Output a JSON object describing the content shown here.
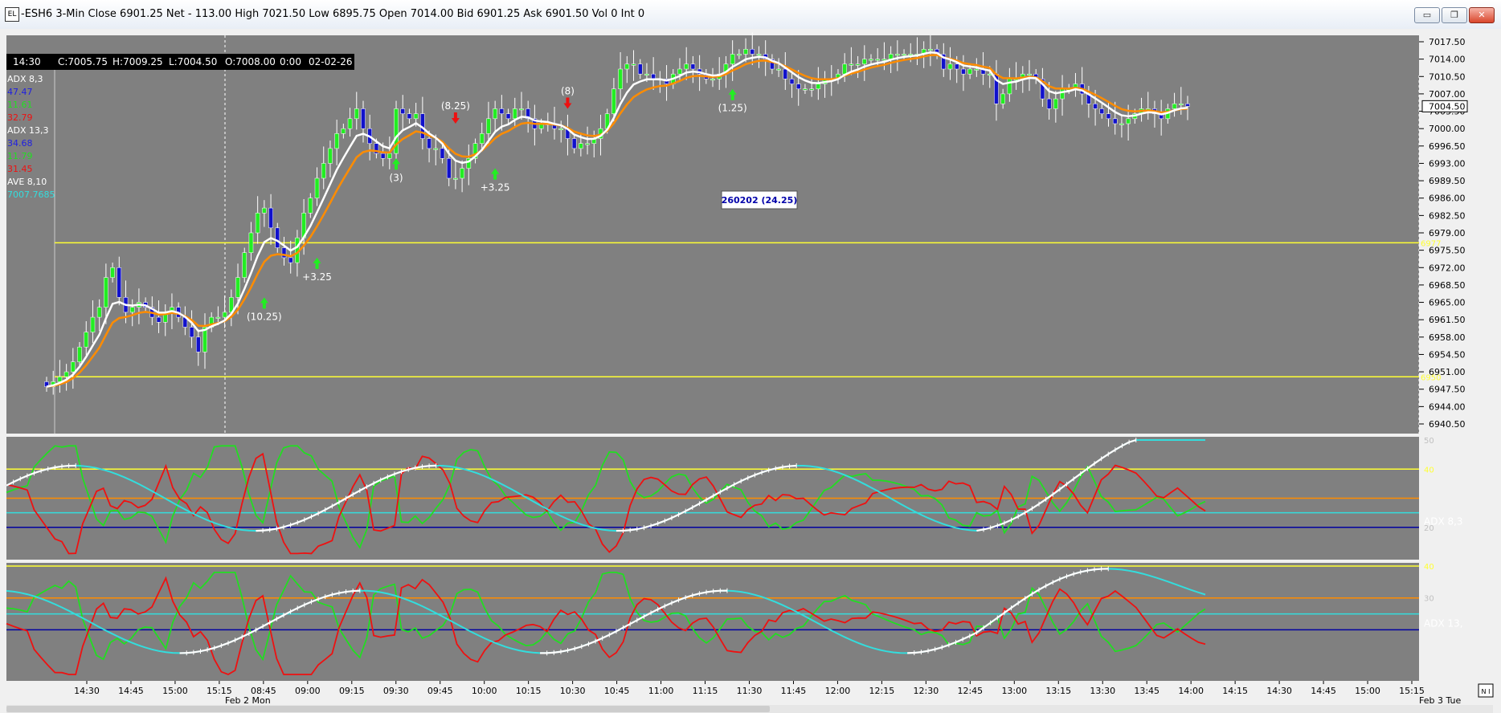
{
  "window": {
    "app_icon": "EL",
    "title": "-ESH6 3-Min Close 6901.25 Net - 113.00 High 7021.50 Low 6895.75 Open 7014.00 Bid 6901.25 Ask 6901.50 Vol 0 Int 0",
    "minimize_icon": "minimize-icon",
    "maximize_icon": "maximize-icon",
    "close_icon": "close-icon",
    "min_glyph": "▭",
    "max_glyph": "❐",
    "close_glyph": "✕"
  },
  "data_box": {
    "time": "14:30",
    "c": "C:7005.75",
    "h": "H:7009.25",
    "l": "L:7004.50",
    "o": "O:7008.00",
    "vol": "0:00",
    "date": "02-02-26"
  },
  "legend": [
    {
      "text": "ADX  8,3",
      "color": "#ffffff"
    },
    {
      "text": "47.47",
      "color": "#2020e0"
    },
    {
      "text": "11.61",
      "color": "#22dd22"
    },
    {
      "text": "32.79",
      "color": "#ee1111"
    },
    {
      "text": "ADX  13,3",
      "color": "#ffffff"
    },
    {
      "text": "34.68",
      "color": "#2020e0"
    },
    {
      "text": "11.79",
      "color": "#22dd22"
    },
    {
      "text": "31.45",
      "color": "#ee1111"
    },
    {
      "text": "AVE  8,10",
      "color": "#ffffff"
    },
    {
      "text": "7007.7685",
      "color": "#33dddd"
    }
  ],
  "colors": {
    "background": "#808080",
    "up_bar": "#22ee22",
    "down_bar": "#1111cc",
    "ma_slow": "#ff8c00",
    "ma_fast": "#ffffff",
    "level_line": "#ffff33",
    "adx_plus": "#22dd22",
    "adx_minus": "#ee1111",
    "adx_line": "#33dddd",
    "adx_slope": "#ffffff",
    "ref_orange": "#ff8c00",
    "ref_cyan": "#33dddd",
    "ref_navy": "#0000a0"
  },
  "price_axis": {
    "ticks": [
      "7017.50",
      "7014.00",
      "7010.50",
      "7007.00",
      "7003.50",
      "7000.00",
      "6996.50",
      "6993.00",
      "6989.50",
      "6986.00",
      "6982.50",
      "6979.00",
      "6975.50",
      "6972.00",
      "6968.50",
      "6965.00",
      "6961.50",
      "6958.00",
      "6954.50",
      "6951.00",
      "6947.50",
      "6944.00",
      "6940.50"
    ],
    "current_price": "7004.50",
    "current_price_value": 7004.5,
    "range": [
      6940.5,
      7017.5
    ]
  },
  "levels": [
    {
      "value": 6977,
      "label": "6977"
    },
    {
      "value": 6950,
      "label": "6950"
    }
  ],
  "time_axis": {
    "labels": [
      "14:30",
      "14:45",
      "15:00",
      "15:15",
      "08:45",
      "09:00",
      "09:15",
      "09:30",
      "09:45",
      "10:00",
      "10:15",
      "10:30",
      "10:45",
      "11:00",
      "11:15",
      "11:30",
      "11:45",
      "12:00",
      "12:15",
      "12:30",
      "12:45",
      "13:00",
      "13:15",
      "13:30",
      "13:45",
      "14:00",
      "14:15",
      "14:30",
      "14:45",
      "15:00",
      "15:15"
    ],
    "session_label": "Feb 2 Mon",
    "right_label": "Feb 3 Tue",
    "corner_label": "N I"
  },
  "annotations": [
    {
      "text": "(10.25)",
      "arrow": "up",
      "bar": 33,
      "price": 6966
    },
    {
      "text": "+3.25",
      "arrow": "up",
      "bar": 41,
      "price": 6974
    },
    {
      "text": "(3)",
      "arrow": "up",
      "bar": 53,
      "price": 6994
    },
    {
      "text": "(8.25)",
      "arrow": "down",
      "bar": 62,
      "price": 7001
    },
    {
      "text": "+3.25",
      "arrow": "up",
      "bar": 68,
      "price": 6992
    },
    {
      "text": "(8)",
      "arrow": "down",
      "bar": 79,
      "price": 7004
    },
    {
      "text": "(1.25)",
      "arrow": "up",
      "bar": 104,
      "price": 7008
    }
  ],
  "profit_box": "260202  (24.25)",
  "adx_pane_1": {
    "label": "ADX  8,3",
    "range": [
      10,
      50
    ],
    "ticks": [
      {
        "value": 50,
        "label": "50"
      },
      {
        "value": 40,
        "label": "40"
      },
      {
        "value": 20,
        "label": "20"
      }
    ],
    "refs": [
      {
        "value": 40,
        "kind": "yellow"
      },
      {
        "value": 30,
        "kind": "orange"
      },
      {
        "value": 25,
        "kind": "cyan"
      },
      {
        "value": 20,
        "kind": "navy"
      }
    ]
  },
  "adx_pane_2": {
    "label": "ADX  13,",
    "range": [
      5,
      40
    ],
    "ticks": [
      {
        "value": 40,
        "label": "40"
      },
      {
        "value": 30,
        "label": "30"
      }
    ],
    "refs": [
      {
        "value": 40,
        "kind": "yellow"
      },
      {
        "value": 30,
        "kind": "orange"
      },
      {
        "value": 25,
        "kind": "cyan"
      },
      {
        "value": 20,
        "kind": "navy"
      }
    ]
  },
  "chart_data": {
    "type": "candlestick",
    "interval": "3-Min",
    "symbol": "ESH6",
    "closes": [
      6948,
      6949,
      6950,
      6951,
      6953,
      6956,
      6959,
      6962,
      6964,
      6970,
      6972,
      6966,
      6963,
      6964,
      6965,
      6964,
      6962,
      6961,
      6963,
      6964,
      6962,
      6960,
      6958,
      6955,
      6960,
      6962,
      6962,
      6963,
      6966,
      6970,
      6975,
      6979,
      6983,
      6984,
      6980,
      6976,
      6974,
      6973,
      6978,
      6983,
      6986,
      6990,
      6993,
      6996,
      6999,
      7000,
      7002,
      7004,
      7000,
      6997,
      6995,
      6994,
      6995,
      7004,
      7003,
      7002,
      7003,
      6998,
      6996,
      6996,
      6994,
      6990,
      6990,
      6992,
      6994,
      6997,
      6999,
      7002,
      7004,
      7003,
      7002,
      7004,
      7004,
      7002,
      7000,
      7001,
      7001,
      7000,
      7000,
      6998,
      6996,
      6997,
      6997,
      6998,
      7000,
      7003,
      7008,
      7012,
      7013,
      7013,
      7011,
      7011,
      7010,
      7010,
      7009,
      7011,
      7012,
      7013,
      7012,
      7011,
      7010,
      7010,
      7011,
      7013,
      7015,
      7015,
      7016,
      7015,
      7015,
      7014,
      7012,
      7012,
      7010,
      7009,
      7008,
      7008,
      7008,
      7009,
      7010,
      7010,
      7011,
      7013,
      7013,
      7013,
      7014,
      7014,
      7014,
      7014,
      7015,
      7015,
      7015,
      7015,
      7015,
      7016,
      7016,
      7015,
      7012,
      7013,
      7012,
      7011,
      7012,
      7012,
      7011,
      7011,
      7005,
      7007,
      7010,
      7010,
      7011,
      7011,
      7010,
      7006,
      7004,
      7006,
      7008,
      7008,
      7009,
      7007,
      7005,
      7004,
      7003,
      7002,
      7001,
      7001,
      7002,
      7003,
      7004,
      7004,
      7003,
      7002,
      7004,
      7005,
      7005,
      7004.5
    ]
  }
}
